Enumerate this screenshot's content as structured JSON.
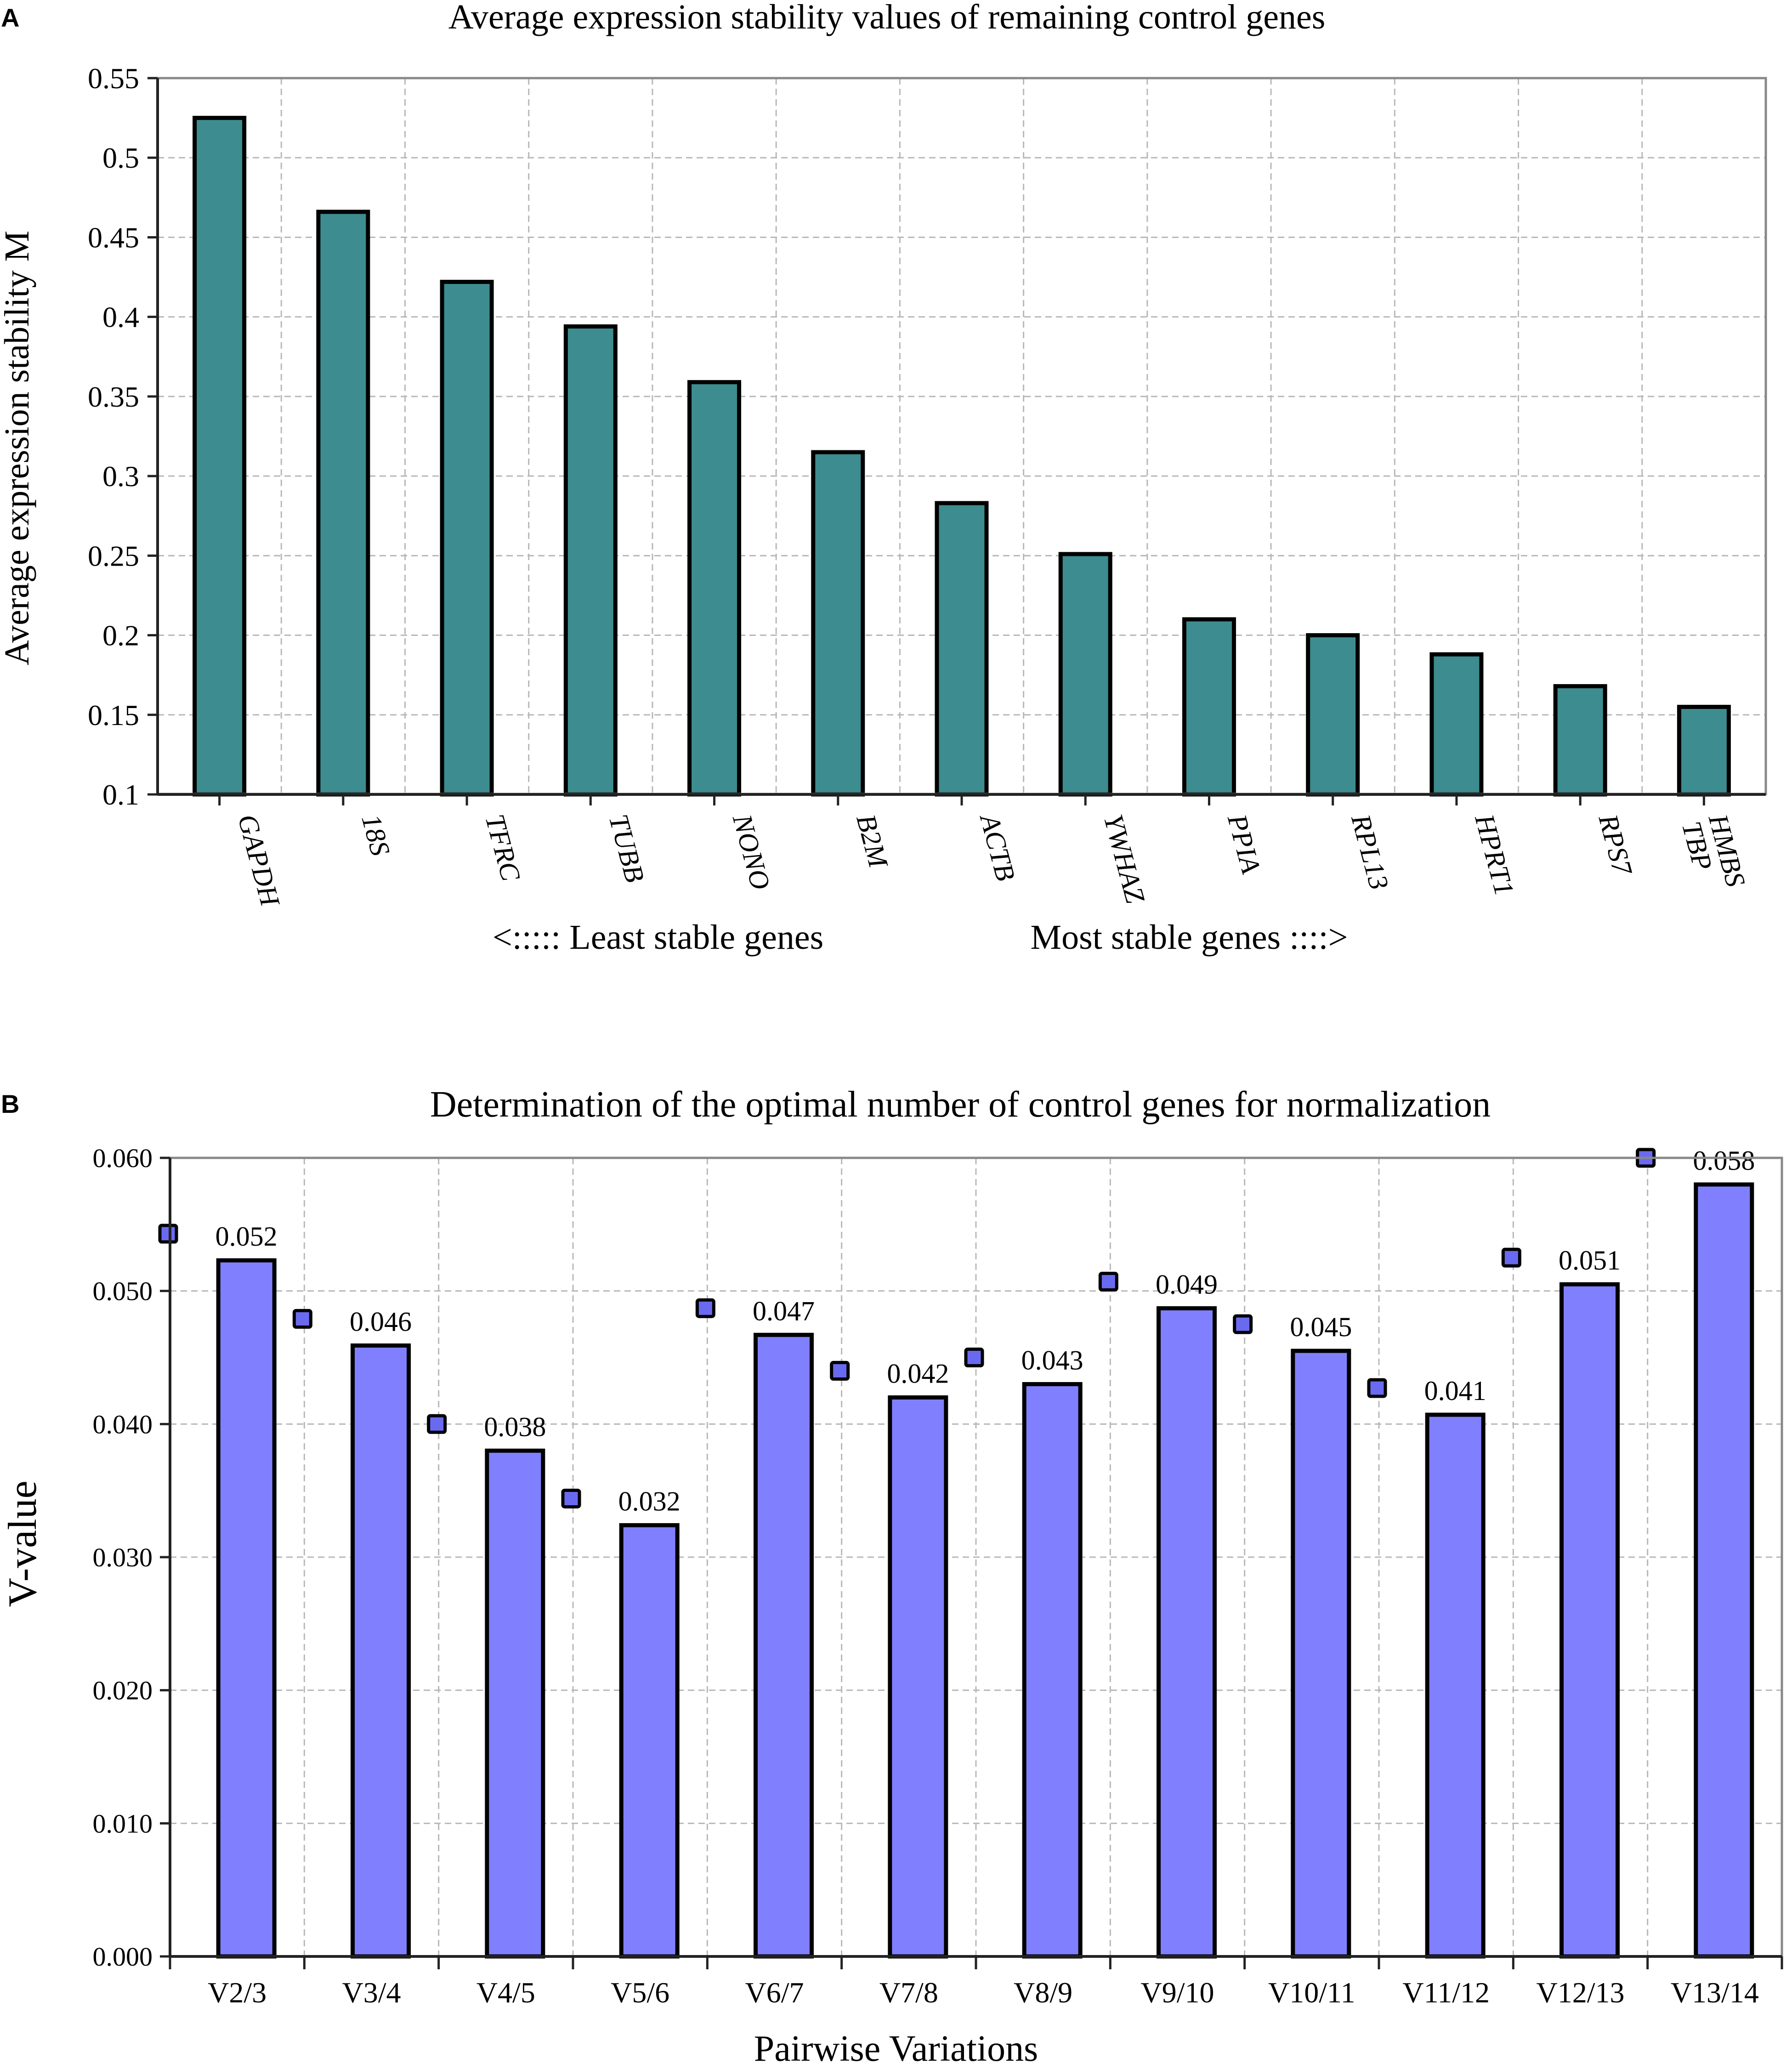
{
  "chart_data": [
    {
      "panel_label": "A",
      "type": "bar",
      "title": "Average expression stability values of remaining control genes",
      "ylabel": "Average expression stability M",
      "xlabel_left": "<:::::  Least stable genes",
      "xlabel_right": "Most stable genes ::::>",
      "ylim": [
        0.1,
        0.55
      ],
      "yticks": [
        "0.1",
        "0.15",
        "0.2",
        "0.25",
        "0.3",
        "0.35",
        "0.4",
        "0.45",
        "0.5",
        "0.55"
      ],
      "categories": [
        [
          "GAPDH"
        ],
        [
          "18S"
        ],
        [
          "TFRC"
        ],
        [
          "TUBB"
        ],
        [
          "NONO"
        ],
        [
          "B2M"
        ],
        [
          "ACTB"
        ],
        [
          "YWHAZ"
        ],
        [
          "PPIA"
        ],
        [
          "RPL13"
        ],
        [
          "HPRT1"
        ],
        [
          "RPS7"
        ],
        [
          "HMBS",
          "TBP"
        ]
      ],
      "values": [
        0.525,
        0.466,
        0.422,
        0.394,
        0.359,
        0.315,
        0.283,
        0.251,
        0.21,
        0.2,
        0.188,
        0.168,
        0.155
      ],
      "bar_color": "#3d8c8f",
      "grid": true
    },
    {
      "panel_label": "B",
      "type": "bar",
      "title": "Determination of the optimal number of control genes for normalization",
      "ylabel": "V-value",
      "xlabel": "Pairwise Variations",
      "ylim": [
        0,
        0.06
      ],
      "yticks": [
        "0.000",
        "0.010",
        "0.020",
        "0.030",
        "0.040",
        "0.050",
        "0.060"
      ],
      "categories": [
        "V2/3",
        "V3/4",
        "V4/5",
        "V5/6",
        "V6/7",
        "V7/8",
        "V8/9",
        "V9/10",
        "V10/11",
        "V11/12",
        "V12/13",
        "V13/14"
      ],
      "values": [
        0.0523,
        0.0459,
        0.038,
        0.0324,
        0.0467,
        0.042,
        0.043,
        0.0487,
        0.0455,
        0.0407,
        0.0505,
        0.058
      ],
      "data_labels": [
        "0.052",
        "0.046",
        "0.038",
        "0.032",
        "0.047",
        "0.042",
        "0.043",
        "0.049",
        "0.045",
        "0.041",
        "0.051",
        "0.058"
      ],
      "bar_color": "#8080ff",
      "marker_color": "#6a6af0",
      "grid": true
    }
  ]
}
